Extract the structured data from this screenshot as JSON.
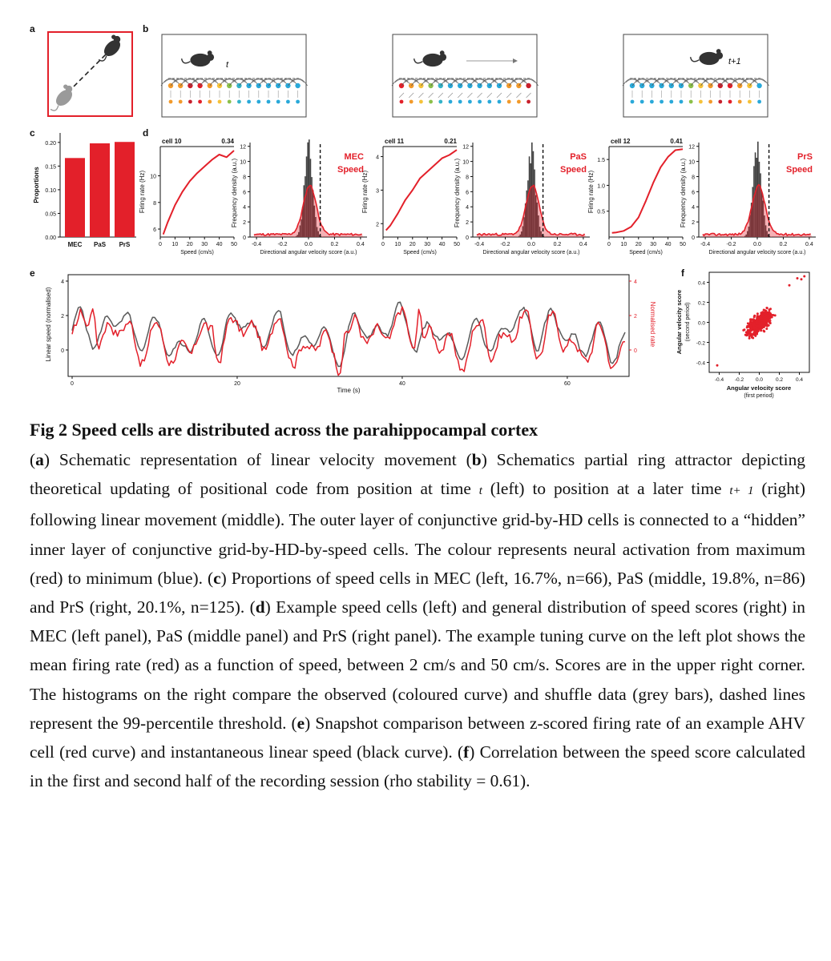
{
  "figure": {
    "panel_labels": [
      "a",
      "b",
      "c",
      "d",
      "e",
      "f"
    ],
    "b": {
      "time_labels": [
        "t",
        "t+1"
      ]
    },
    "c": {
      "ylabel": "Proportions",
      "yticks": [
        "0.00",
        "0.05",
        "0.10",
        "0.15",
        "0.20"
      ]
    },
    "d": {
      "panels": [
        {
          "cell": "cell 10",
          "score": "0.34",
          "region": "MEC",
          "speed_word": "Speed",
          "rate_ylabel": "Firing rate (Hz)",
          "rate_yticks": [
            "6",
            "8",
            "10"
          ],
          "speed_xlabel": "Speed (cm/s)",
          "speed_xticks": [
            "0",
            "10",
            "20",
            "30",
            "40",
            "50"
          ],
          "hist_ylabel": "Frequency density (a.u.)",
          "hist_yticks": [
            "0",
            "2",
            "4",
            "6",
            "8",
            "10",
            "12"
          ],
          "hist_xlabel": "Directional angular velocity score (a.u.)",
          "hist_xticks": [
            "-0.4",
            "-0.2",
            "0.0",
            "0.2",
            "0.4"
          ]
        },
        {
          "cell": "cell 11",
          "score": "0.21",
          "region": "PaS",
          "speed_word": "Speed",
          "rate_ylabel": "Firing rate (Hz)",
          "rate_yticks": [
            "2",
            "3",
            "4"
          ],
          "speed_xlabel": "Speed (cm/s)",
          "speed_xticks": [
            "0",
            "10",
            "20",
            "30",
            "40",
            "50"
          ],
          "hist_ylabel": "Frequency density (a.u.)",
          "hist_yticks": [
            "0",
            "2",
            "4",
            "6",
            "8",
            "10",
            "12"
          ],
          "hist_xlabel": "Directional angular velocity score (a.u.)",
          "hist_xticks": [
            "-0.4",
            "-0.2",
            "0.0",
            "0.2",
            "0.4"
          ]
        },
        {
          "cell": "cell 12",
          "score": "0.41",
          "region": "PrS",
          "speed_word": "Speed",
          "rate_ylabel": "Firing rate (Hz)",
          "rate_yticks": [
            "0.5",
            "1.0",
            "1.5"
          ],
          "speed_xlabel": "Speed (cm/s)",
          "speed_xticks": [
            "0",
            "10",
            "20",
            "30",
            "40",
            "50"
          ],
          "hist_ylabel": "Frequency density (a.u.)",
          "hist_yticks": [
            "0",
            "2",
            "4",
            "6",
            "8",
            "10",
            "12"
          ],
          "hist_xlabel": "Directional angular velocity score (a.u.)",
          "hist_xticks": [
            "-0.4",
            "-0.2",
            "0.0",
            "0.2",
            "0.4"
          ]
        }
      ]
    },
    "e": {
      "ylabel_left": "Linear speed (normalised)",
      "ylabel_right": "Normalised rate",
      "xlabel": "Time (s)",
      "xticks": [
        "0",
        "20",
        "40",
        "60"
      ],
      "yticks_left": [
        "0",
        "2",
        "4"
      ],
      "yticks_right": [
        "0",
        "2",
        "4"
      ]
    },
    "f": {
      "ylabel_line1": "Angular velocity score",
      "ylabel_line2": "(second period)",
      "xlabel_line1": "Angular velocity score",
      "xlabel_line2": "(first period)",
      "xticks": [
        "-0.4",
        "-0.2",
        "0.0",
        "0.2",
        "0.4"
      ],
      "yticks": [
        "-0.4",
        "-0.2",
        "0.0",
        "0.2",
        "0.4"
      ]
    }
  },
  "chart_data": [
    {
      "type": "bar",
      "panel": "c",
      "categories": [
        "MEC",
        "PaS",
        "PrS"
      ],
      "values": [
        0.167,
        0.198,
        0.201
      ],
      "ylabel": "Proportions",
      "ylim": [
        0,
        0.22
      ]
    },
    {
      "type": "line",
      "panel": "d",
      "cell": "cell 10",
      "x": [
        2,
        5,
        10,
        15,
        20,
        25,
        30,
        35,
        40,
        45,
        50
      ],
      "y": [
        5.6,
        6.5,
        7.8,
        8.8,
        9.6,
        10.2,
        10.7,
        11.2,
        11.6,
        11.4,
        11.9
      ],
      "xlabel": "Speed (cm/s)",
      "ylabel": "Firing rate (Hz)",
      "xlim": [
        0,
        50
      ],
      "ylim": [
        5.4,
        12.2
      ]
    },
    {
      "type": "line",
      "panel": "d",
      "cell": "cell 11",
      "x": [
        2,
        5,
        10,
        15,
        20,
        25,
        30,
        35,
        40,
        45,
        50
      ],
      "y": [
        1.8,
        1.95,
        2.3,
        2.7,
        3.0,
        3.35,
        3.55,
        3.75,
        3.95,
        4.05,
        4.2
      ],
      "xlabel": "Speed (cm/s)",
      "ylabel": "Firing rate (Hz)",
      "xlim": [
        0,
        50
      ],
      "ylim": [
        1.6,
        4.3
      ]
    },
    {
      "type": "line",
      "panel": "d",
      "cell": "cell 12",
      "x": [
        2,
        5,
        10,
        15,
        20,
        25,
        30,
        35,
        40,
        45,
        50
      ],
      "y": [
        0.08,
        0.09,
        0.12,
        0.2,
        0.38,
        0.7,
        1.05,
        1.35,
        1.55,
        1.68,
        1.7
      ],
      "xlabel": "Speed (cm/s)",
      "ylabel": "Firing rate (Hz)",
      "xlim": [
        0,
        50
      ],
      "ylim": [
        0,
        1.75
      ]
    },
    {
      "type": "scatter",
      "panel": "f",
      "xlabel": "Angular velocity score (first period)",
      "ylabel": "Angular velocity score (second period)",
      "xlim": [
        -0.5,
        0.5
      ],
      "ylim": [
        -0.5,
        0.5
      ],
      "rho": 0.61
    }
  ],
  "caption": {
    "title": "Fig 2 Speed cells are distributed across the parahippocampal cortex",
    "segments": [
      {
        "t": "("
      },
      {
        "t": "a",
        "b": true
      },
      {
        "t": ") Schematic representation of linear velocity movement ("
      },
      {
        "t": "b",
        "b": true
      },
      {
        "t": ") Schematics partial ring attractor depicting theoretical updating of positional code from position at time "
      },
      {
        "t": "t",
        "i": true
      },
      {
        "t": " (left) to position at a later time "
      },
      {
        "t": "t+ 1",
        "i": true
      },
      {
        "t": " (right) following linear movement (middle). The outer layer of conjunctive grid-by-HD cells is connected to a “hidden” inner layer of conjunctive grid-by-HD-by-speed cells. The colour represents neural activation from maximum (red) to minimum (blue). ("
      },
      {
        "t": "c",
        "b": true
      },
      {
        "t": ") Proportions of speed cells in MEC (left, 16.7%, n=66), PaS (middle, 19.8%, n=86) and PrS (right, 20.1%, n=125). ("
      },
      {
        "t": "d",
        "b": true
      },
      {
        "t": ") Example speed cells (left) and general distribution of speed scores (right) in MEC (left panel), PaS (middle panel) and PrS (right panel). The example tuning curve on the left plot shows the mean firing rate (red) as a function of speed, between 2 cm/s and 50 cm/s. Scores are in the upper right corner. The histograms on the right compare the observed (coloured curve) and shuffle data (grey bars), dashed lines represent the 99-percentile threshold. ("
      },
      {
        "t": "e",
        "b": true
      },
      {
        "t": ") Snapshot comparison between z-scored firing rate of an example AHV cell (red curve) and instantaneous linear speed (black curve).  ("
      },
      {
        "t": "f",
        "b": true
      },
      {
        "t": ") Correlation between the speed score calculated in the first and second half of the recording session (rho stability = 0.61)."
      }
    ]
  }
}
